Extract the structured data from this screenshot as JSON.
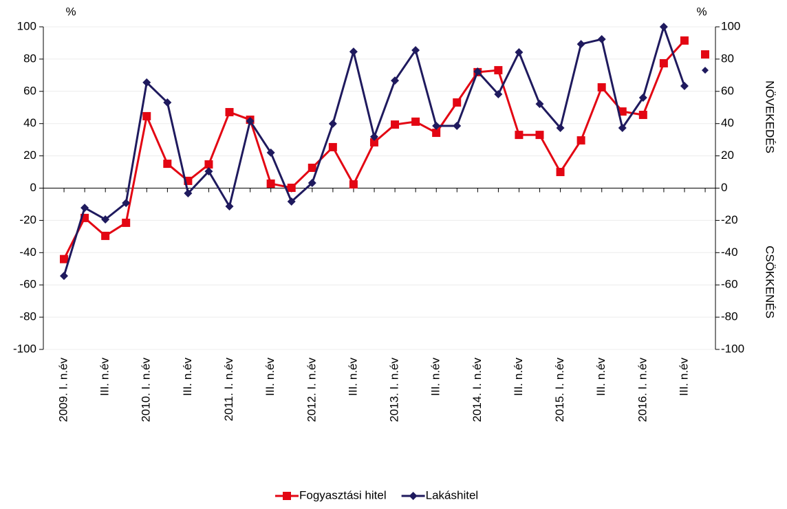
{
  "chart_data": {
    "type": "line",
    "ylabel": "%",
    "y2label": "%",
    "annotations": [
      "NÖVEKEDÉS",
      "CSÖKKENÉS"
    ],
    "categories": [
      "2009. I. n.év",
      null,
      "III. n.év",
      null,
      "2010. I. n.év",
      null,
      "III. n.év",
      null,
      "2011. I. n.év",
      null,
      "III. n.év",
      null,
      "2012. I. n.év",
      null,
      "III. n.év",
      null,
      "2013. I. n.év",
      null,
      "III. n.év",
      null,
      "2014. I. n.év",
      null,
      "III. n.év",
      null,
      "2015. I. n.év",
      null,
      "III. n.év",
      null,
      "2016. I. n.év",
      null,
      "III. n.év",
      null
    ],
    "series": [
      {
        "name": "Fogyasztási hitel",
        "color": "#e30613",
        "marker": "square",
        "values": [
          -44,
          -18.5,
          -29.6,
          -21.5,
          44.6,
          15.1,
          4.5,
          14.7,
          47.1,
          42.4,
          2.8,
          0.2,
          12.6,
          25.4,
          2.3,
          28.4,
          39.4,
          41.2,
          34.3,
          53.1,
          71.9,
          73.1,
          33,
          33,
          10,
          29.6,
          62.5,
          47.5,
          45.4,
          77.4,
          91.5,
          82.9
        ]
      },
      {
        "name": "Lakáshitel",
        "color": "#1f1a5e",
        "marker": "diamond",
        "values": [
          -54.4,
          -12.2,
          -19.4,
          -9.2,
          65.5,
          53.1,
          -3.2,
          10.4,
          -11.3,
          41.6,
          22,
          -8.3,
          3.2,
          39.9,
          84.6,
          31.8,
          66.7,
          85.5,
          38.6,
          38.6,
          72.3,
          58.2,
          84.2,
          52.2,
          37.3,
          89.3,
          92.3,
          37.3,
          56.1,
          100,
          63.3,
          73.1
        ]
      }
    ],
    "ylim": [
      -100,
      100
    ],
    "yticks": [
      -100,
      -80,
      -60,
      -40,
      -20,
      0,
      20,
      40,
      60,
      80,
      100
    ],
    "y2lim": [
      -100,
      100
    ],
    "y2ticks": [
      -100,
      -80,
      -60,
      -40,
      -20,
      0,
      20,
      40,
      60,
      80,
      100
    ],
    "grid": true,
    "legend": "bottom"
  }
}
